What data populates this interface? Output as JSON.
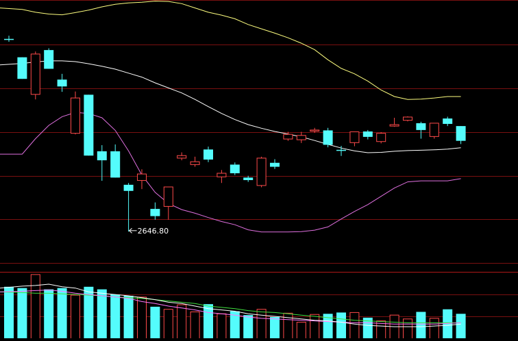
{
  "theme": {
    "background": "#000000",
    "grid": "#7a1010",
    "separator": "#b01818",
    "up": "#ff4a4a",
    "down": "#54fcfc",
    "upper_band": "#ffff80",
    "middle_band": "#ffffff",
    "lower_band": "#e070e0",
    "vol_ma_short": "#ffffff",
    "vol_ma_mid": "#ff77ff",
    "vol_ma_long": "#40e040",
    "annotation": "#ffffff"
  },
  "chart_data": {
    "type": "candlestick",
    "panels": [
      "price",
      "volume"
    ],
    "grid": true,
    "price_ylim": [
      2560,
      3290
    ],
    "volume_ylim": [
      0,
      100
    ],
    "annotations": [
      {
        "label": "2646.80",
        "candle_index": 9,
        "price": 2646.8,
        "icon": "arrow-left-icon"
      }
    ],
    "candles": [
      {
        "open": 3182,
        "close": 3180,
        "high": 3191,
        "low": 3174
      },
      {
        "open": 3131,
        "close": 3071,
        "high": 3131,
        "low": 3071
      },
      {
        "open": 3028,
        "close": 3140,
        "high": 3147,
        "low": 3014
      },
      {
        "open": 3151,
        "close": 3099,
        "high": 3156,
        "low": 3099
      },
      {
        "open": 3069,
        "close": 3050,
        "high": 3085,
        "low": 3035
      },
      {
        "open": 2920,
        "close": 3018,
        "high": 3036,
        "low": 2917
      },
      {
        "open": 3027,
        "close": 2858,
        "high": 3027,
        "low": 2858
      },
      {
        "open": 2870,
        "close": 2845,
        "high": 2887,
        "low": 2788
      },
      {
        "open": 2870,
        "close": 2797,
        "high": 2889,
        "low": 2797
      },
      {
        "open": 2777,
        "close": 2760,
        "high": 2782,
        "low": 2647
      },
      {
        "open": 2789,
        "close": 2807,
        "high": 2820,
        "low": 2765
      },
      {
        "open": 2710,
        "close": 2690,
        "high": 2728,
        "low": 2680
      },
      {
        "open": 2717,
        "close": 2771,
        "high": 2771,
        "low": 2680
      },
      {
        "open": 2851,
        "close": 2858,
        "high": 2867,
        "low": 2845
      },
      {
        "open": 2833,
        "close": 2841,
        "high": 2855,
        "low": 2827
      },
      {
        "open": 2875,
        "close": 2847,
        "high": 2883,
        "low": 2840
      },
      {
        "open": 2799,
        "close": 2809,
        "high": 2818,
        "low": 2782
      },
      {
        "open": 2833,
        "close": 2809,
        "high": 2839,
        "low": 2804
      },
      {
        "open": 2797,
        "close": 2790,
        "high": 2802,
        "low": 2785
      },
      {
        "open": 2775,
        "close": 2851,
        "high": 2855,
        "low": 2770
      },
      {
        "open": 2838,
        "close": 2827,
        "high": 2848,
        "low": 2821
      },
      {
        "open": 2904,
        "close": 2917,
        "high": 2924,
        "low": 2899
      },
      {
        "open": 2902,
        "close": 2914,
        "high": 2924,
        "low": 2893
      },
      {
        "open": 2926,
        "close": 2929,
        "high": 2935,
        "low": 2921
      },
      {
        "open": 2928,
        "close": 2888,
        "high": 2935,
        "low": 2881
      },
      {
        "open": 2874,
        "close": 2872,
        "high": 2885,
        "low": 2857
      },
      {
        "open": 2894,
        "close": 2924,
        "high": 2924,
        "low": 2884
      },
      {
        "open": 2925,
        "close": 2910,
        "high": 2929,
        "low": 2903
      },
      {
        "open": 2897,
        "close": 2920,
        "high": 2923,
        "low": 2892
      },
      {
        "open": 2940,
        "close": 2944,
        "high": 2963,
        "low": 2938
      },
      {
        "open": 2956,
        "close": 2965,
        "high": 2967,
        "low": 2953
      },
      {
        "open": 2948,
        "close": 2929,
        "high": 2952,
        "low": 2905
      },
      {
        "open": 2911,
        "close": 2948,
        "high": 2948,
        "low": 2905
      },
      {
        "open": 2961,
        "close": 2946,
        "high": 2966,
        "low": 2940
      },
      {
        "open": 2940,
        "close": 2899,
        "high": 2940,
        "low": 2890
      }
    ],
    "bollinger_upper": [
      3268,
      3264,
      3256,
      3251,
      3249,
      3255,
      3262,
      3271,
      3278,
      3282,
      3284,
      3287,
      3286,
      3280,
      3268,
      3256,
      3248,
      3238,
      3222,
      3210,
      3198,
      3185,
      3170,
      3152,
      3124,
      3100,
      3085,
      3065,
      3040,
      3022,
      3014,
      3015,
      3018,
      3022,
      3022
    ],
    "bollinger_middle": [
      3110,
      3114,
      3118,
      3121,
      3121,
      3119,
      3113,
      3106,
      3098,
      3087,
      3076,
      3060,
      3046,
      3032,
      3014,
      2994,
      2975,
      2958,
      2944,
      2934,
      2925,
      2918,
      2910,
      2900,
      2889,
      2879,
      2871,
      2866,
      2867,
      2870,
      2872,
      2873,
      2874,
      2876,
      2880
    ],
    "bollinger_lower": [
      2862,
      2862,
      2905,
      2942,
      2966,
      2978,
      2975,
      2963,
      2928,
      2871,
      2804,
      2756,
      2725,
      2708,
      2698,
      2686,
      2675,
      2666,
      2652,
      2646,
      2646,
      2646,
      2647,
      2651,
      2660,
      2682,
      2703,
      2722,
      2745,
      2768,
      2785,
      2788,
      2788,
      2788,
      2794
    ],
    "volume": [
      80,
      78,
      99,
      76,
      78,
      67,
      80,
      76,
      68,
      66,
      64,
      49,
      45,
      52,
      41,
      53,
      38,
      42,
      36,
      45,
      33,
      39,
      25,
      37,
      38,
      40,
      40,
      32,
      27,
      36,
      30,
      41,
      31,
      45,
      38
    ],
    "volume_ma_short": [
      78,
      81,
      82,
      84,
      80,
      78,
      72,
      70,
      68,
      66,
      63,
      60,
      56,
      54,
      50,
      46,
      44,
      42,
      38,
      36,
      34,
      32,
      30,
      28,
      27,
      25,
      22,
      20,
      19,
      18,
      18,
      18,
      19,
      20,
      22
    ],
    "volume_ma_mid": [
      72,
      73,
      74,
      75,
      73,
      70,
      68,
      66,
      64,
      62,
      57,
      54,
      50,
      47,
      44,
      40,
      38,
      36,
      33,
      31,
      30,
      29,
      28,
      27,
      26,
      25,
      24,
      24,
      23,
      22,
      22,
      22,
      22,
      23,
      24
    ],
    "volume_ma_long": [
      72,
      71,
      70,
      70,
      69,
      68,
      67,
      66,
      64,
      63,
      62,
      60,
      58,
      56,
      54,
      50,
      48,
      46,
      43,
      41,
      40,
      38,
      36,
      34,
      32,
      30,
      28,
      27,
      26,
      25,
      24,
      24,
      24,
      24,
      24
    ]
  }
}
